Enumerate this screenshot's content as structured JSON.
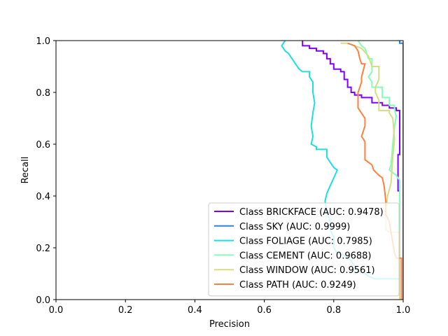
{
  "chart_data": {
    "type": "line",
    "title": "",
    "xlabel": "Precision",
    "ylabel": "Recall",
    "xlim": [
      0,
      1
    ],
    "ylim": [
      0,
      1
    ],
    "x_ticks": [
      "0.0",
      "0.2",
      "0.4",
      "0.6",
      "0.8",
      "1.0"
    ],
    "y_ticks": [
      "0.0",
      "0.2",
      "0.4",
      "0.6",
      "0.8",
      "1.0"
    ],
    "grid": false,
    "legend_position": "lower-right",
    "series": [
      {
        "name": "Class BRICKFACE (AUC: 0.9478)",
        "color": "#7f00ff",
        "points": [
          [
            0.71,
            1.0
          ],
          [
            0.71,
            0.98
          ],
          [
            0.73,
            0.98
          ],
          [
            0.73,
            0.97
          ],
          [
            0.75,
            0.97
          ],
          [
            0.75,
            0.96
          ],
          [
            0.77,
            0.96
          ],
          [
            0.77,
            0.95
          ],
          [
            0.78,
            0.95
          ],
          [
            0.78,
            0.93
          ],
          [
            0.79,
            0.93
          ],
          [
            0.79,
            0.91
          ],
          [
            0.8,
            0.91
          ],
          [
            0.8,
            0.89
          ],
          [
            0.82,
            0.89
          ],
          [
            0.82,
            0.88
          ],
          [
            0.83,
            0.88
          ],
          [
            0.83,
            0.85
          ],
          [
            0.84,
            0.85
          ],
          [
            0.84,
            0.82
          ],
          [
            0.85,
            0.82
          ],
          [
            0.85,
            0.8
          ],
          [
            0.86,
            0.8
          ],
          [
            0.86,
            0.79
          ],
          [
            0.88,
            0.79
          ],
          [
            0.88,
            0.78
          ],
          [
            0.91,
            0.78
          ],
          [
            0.91,
            0.76
          ],
          [
            0.94,
            0.76
          ],
          [
            0.94,
            0.75
          ],
          [
            0.96,
            0.75
          ],
          [
            0.96,
            0.74
          ],
          [
            0.98,
            0.74
          ],
          [
            0.98,
            0.73
          ],
          [
            0.99,
            0.73
          ],
          [
            0.99,
            0.56
          ],
          [
            0.985,
            0.56
          ],
          [
            0.985,
            0.42
          ],
          [
            0.99,
            0.42
          ],
          [
            0.99,
            0.0
          ]
        ]
      },
      {
        "name": "Class SKY (AUC: 0.9999)",
        "color": "#2c7fee",
        "points": [
          [
            0.99,
            1.0
          ],
          [
            0.99,
            0.99
          ],
          [
            1.0,
            0.99
          ],
          [
            1.0,
            0.0
          ]
        ]
      },
      {
        "name": "Class FOLIAGE (AUC: 0.7985)",
        "color": "#1ddfdd",
        "points": [
          [
            0.66,
            1.0
          ],
          [
            0.65,
            0.98
          ],
          [
            0.66,
            0.96
          ],
          [
            0.67,
            0.95
          ],
          [
            0.68,
            0.93
          ],
          [
            0.69,
            0.91
          ],
          [
            0.7,
            0.89
          ],
          [
            0.71,
            0.88
          ],
          [
            0.73,
            0.88
          ],
          [
            0.73,
            0.86
          ],
          [
            0.74,
            0.84
          ],
          [
            0.74,
            0.8
          ],
          [
            0.745,
            0.76
          ],
          [
            0.74,
            0.72
          ],
          [
            0.735,
            0.67
          ],
          [
            0.74,
            0.63
          ],
          [
            0.735,
            0.6
          ],
          [
            0.75,
            0.59
          ],
          [
            0.75,
            0.58
          ],
          [
            0.78,
            0.58
          ],
          [
            0.78,
            0.55
          ],
          [
            0.79,
            0.53
          ],
          [
            0.8,
            0.51
          ],
          [
            0.81,
            0.5
          ],
          [
            0.8,
            0.47
          ],
          [
            0.79,
            0.44
          ],
          [
            0.78,
            0.41
          ],
          [
            0.775,
            0.38
          ],
          [
            0.78,
            0.34
          ],
          [
            0.79,
            0.3
          ],
          [
            0.79,
            0.27
          ],
          [
            0.8,
            0.24
          ],
          [
            0.8,
            0.2
          ],
          [
            0.81,
            0.18
          ],
          [
            0.83,
            0.17
          ],
          [
            0.85,
            0.15
          ],
          [
            0.86,
            0.13
          ],
          [
            0.87,
            0.11
          ],
          [
            0.89,
            0.1
          ],
          [
            0.9,
            0.09
          ],
          [
            0.92,
            0.08
          ],
          [
            0.96,
            0.08
          ],
          [
            0.99,
            0.08
          ],
          [
            0.99,
            0.0
          ]
        ]
      },
      {
        "name": "Class CEMENT (AUC: 0.9688)",
        "color": "#81ffb4",
        "points": [
          [
            0.87,
            1.0
          ],
          [
            0.88,
            0.98
          ],
          [
            0.89,
            0.97
          ],
          [
            0.895,
            0.95
          ],
          [
            0.9,
            0.93
          ],
          [
            0.91,
            0.93
          ],
          [
            0.91,
            0.88
          ],
          [
            0.9,
            0.86
          ],
          [
            0.91,
            0.84
          ],
          [
            0.91,
            0.82
          ],
          [
            0.94,
            0.82
          ],
          [
            0.94,
            0.78
          ],
          [
            0.96,
            0.78
          ],
          [
            0.96,
            0.75
          ],
          [
            0.975,
            0.75
          ],
          [
            0.975,
            0.73
          ],
          [
            0.98,
            0.71
          ],
          [
            0.975,
            0.67
          ],
          [
            0.97,
            0.6
          ],
          [
            0.965,
            0.52
          ],
          [
            0.96,
            0.5
          ],
          [
            0.98,
            0.48
          ],
          [
            0.99,
            0.46
          ],
          [
            0.99,
            0.0
          ]
        ]
      },
      {
        "name": "Class WINDOW (AUC: 0.9561)",
        "color": "#d4dd80",
        "points": [
          [
            0.82,
            0.99
          ],
          [
            0.84,
            0.99
          ],
          [
            0.86,
            0.98
          ],
          [
            0.88,
            0.97
          ],
          [
            0.9,
            0.94
          ],
          [
            0.91,
            0.9
          ],
          [
            0.93,
            0.9
          ],
          [
            0.93,
            0.85
          ],
          [
            0.92,
            0.82
          ],
          [
            0.92,
            0.8
          ],
          [
            0.93,
            0.77
          ],
          [
            0.93,
            0.73
          ],
          [
            0.96,
            0.73
          ],
          [
            0.96,
            0.72
          ],
          [
            0.97,
            0.7
          ],
          [
            0.975,
            0.62
          ],
          [
            0.97,
            0.55
          ],
          [
            0.965,
            0.45
          ],
          [
            0.955,
            0.4
          ],
          [
            0.95,
            0.34
          ],
          [
            0.95,
            0.27
          ],
          [
            0.96,
            0.26
          ],
          [
            0.99,
            0.26
          ],
          [
            0.99,
            0.0
          ]
        ]
      },
      {
        "name": "Class PATH (AUC: 0.9249)",
        "color": "#ff7f3f",
        "points": [
          [
            0.84,
            0.99
          ],
          [
            0.86,
            0.98
          ],
          [
            0.87,
            0.96
          ],
          [
            0.875,
            0.93
          ],
          [
            0.88,
            0.91
          ],
          [
            0.89,
            0.91
          ],
          [
            0.88,
            0.86
          ],
          [
            0.88,
            0.84
          ],
          [
            0.87,
            0.8
          ],
          [
            0.87,
            0.74
          ],
          [
            0.89,
            0.7
          ],
          [
            0.89,
            0.67
          ],
          [
            0.88,
            0.63
          ],
          [
            0.89,
            0.61
          ],
          [
            0.89,
            0.58
          ],
          [
            0.89,
            0.54
          ],
          [
            0.91,
            0.52
          ],
          [
            0.915,
            0.5
          ],
          [
            0.93,
            0.48
          ],
          [
            0.94,
            0.47
          ],
          [
            0.945,
            0.44
          ],
          [
            0.95,
            0.38
          ],
          [
            0.95,
            0.33
          ],
          [
            0.96,
            0.3
          ],
          [
            0.965,
            0.26
          ],
          [
            0.97,
            0.22
          ],
          [
            0.975,
            0.18
          ],
          [
            0.98,
            0.16
          ],
          [
            0.995,
            0.16
          ],
          [
            0.995,
            0.0
          ]
        ]
      }
    ]
  }
}
